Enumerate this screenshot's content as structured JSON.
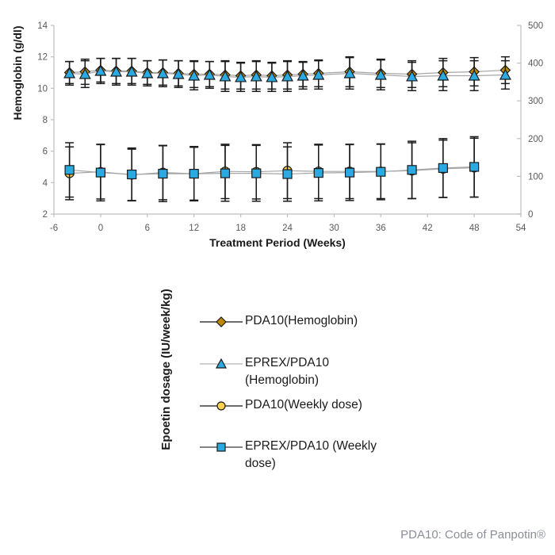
{
  "footer": {
    "note": "PDA10: Code of Panpotin®"
  },
  "chart_data": {
    "type": "line",
    "title": "",
    "x_axis": {
      "label": "Treatment Period (Weeks)",
      "min": -6,
      "max": 54,
      "tick_step": 6,
      "ticks": [
        -6,
        0,
        6,
        12,
        18,
        24,
        30,
        36,
        42,
        48,
        54
      ]
    },
    "y_left": {
      "label": "Hemoglobin (g/dl)",
      "min": 2,
      "max": 14,
      "tick_step": 2,
      "ticks": [
        2,
        4,
        6,
        8,
        10,
        12,
        14
      ]
    },
    "y_right": {
      "label": "Epoetin dosage (IU/week/kg)",
      "min": 0,
      "max": 500,
      "tick_step": 100,
      "ticks": [
        0,
        100,
        200,
        300,
        400,
        500
      ]
    },
    "grid": false,
    "legend_position": "bottom",
    "colors": {
      "axis_line": "#bfbfbf",
      "tick_label": "#595959",
      "error_bar": "#1a1a1a",
      "series_line": "#a6a6a6",
      "blue_marker": "#2BA9E1",
      "dark_gold_marker": "#C08A00",
      "gold_marker": "#FFD34D"
    },
    "series": [
      {
        "name": "PDA10(Hemoglobin)",
        "axis": "left",
        "marker": "diamond",
        "marker_color": "#C08A00",
        "marker_outline": "#1a1a1a",
        "line_color": "#a6a6a6",
        "legend_line_color": "#3d3d3d",
        "weeks": [
          -4,
          -2,
          0,
          2,
          4,
          6,
          8,
          10,
          12,
          14,
          16,
          18,
          20,
          22,
          24,
          26,
          28,
          32,
          36,
          40,
          44,
          48,
          52
        ],
        "values": [
          11.0,
          11.05,
          11.15,
          11.1,
          11.1,
          11.0,
          11.0,
          10.95,
          10.9,
          10.9,
          10.85,
          10.8,
          10.85,
          10.8,
          10.85,
          10.9,
          10.95,
          11.05,
          10.95,
          10.9,
          11.0,
          11.05,
          11.15
        ],
        "errors": [
          0.7,
          0.8,
          0.75,
          0.8,
          0.8,
          0.75,
          0.8,
          0.8,
          0.85,
          0.8,
          0.9,
          0.85,
          0.9,
          0.85,
          0.9,
          0.8,
          0.85,
          0.95,
          0.9,
          0.85,
          0.9,
          0.9,
          0.85
        ]
      },
      {
        "name": "EPREX/PDA10 (Hemoglobin)",
        "axis": "left",
        "marker": "triangle",
        "marker_color": "#2BA9E1",
        "marker_outline": "#1a1a1a",
        "line_color": "#a6a6a6",
        "legend_line_color": "#c0c0c0",
        "weeks": [
          -4,
          -2,
          0,
          2,
          4,
          6,
          8,
          10,
          12,
          14,
          16,
          18,
          20,
          22,
          24,
          26,
          28,
          32,
          36,
          40,
          44,
          48,
          52
        ],
        "values": [
          10.95,
          10.9,
          11.1,
          11.05,
          11.05,
          10.95,
          10.95,
          10.9,
          10.8,
          10.85,
          10.75,
          10.7,
          10.75,
          10.7,
          10.75,
          10.8,
          10.85,
          10.95,
          10.85,
          10.75,
          10.8,
          10.8,
          10.85
        ],
        "errors": [
          0.75,
          0.85,
          0.8,
          0.85,
          0.85,
          0.8,
          0.85,
          0.85,
          0.9,
          0.85,
          0.95,
          0.9,
          0.95,
          0.9,
          0.95,
          0.85,
          0.9,
          1.0,
          0.95,
          0.9,
          0.95,
          0.95,
          0.9
        ]
      },
      {
        "name": "PDA10(Weekly dose)",
        "axis": "right",
        "marker": "circle",
        "marker_color": "#FFD34D",
        "marker_outline": "#1a1a1a",
        "line_color": "#a6a6a6",
        "legend_line_color": "#3d3d3d",
        "weeks": [
          -4,
          0,
          4,
          8,
          12,
          16,
          20,
          24,
          28,
          32,
          36,
          40,
          44,
          48
        ],
        "values": [
          108,
          112,
          104,
          110,
          107,
          113,
          112,
          115,
          113,
          113,
          113,
          115,
          120,
          123
        ],
        "errors": [
          70,
          72,
          68,
          72,
          70,
          72,
          72,
          74,
          72,
          72,
          72,
          74,
          76,
          78
        ]
      },
      {
        "name": "EPREX/PDA10 (Weekly dose)",
        "axis": "right",
        "marker": "square",
        "marker_color": "#2BA9E1",
        "marker_outline": "#1a1a1a",
        "line_color": "#a6a6a6",
        "legend_line_color": "#5a5a5a",
        "weeks": [
          -4,
          0,
          4,
          8,
          12,
          16,
          20,
          24,
          28,
          32,
          36,
          40,
          44,
          48
        ],
        "values": [
          117,
          110,
          105,
          107,
          107,
          108,
          108,
          106,
          109,
          110,
          112,
          117,
          122,
          125
        ],
        "errors": [
          72,
          75,
          70,
          74,
          72,
          74,
          74,
          72,
          74,
          74,
          74,
          76,
          78,
          80
        ]
      }
    ]
  }
}
